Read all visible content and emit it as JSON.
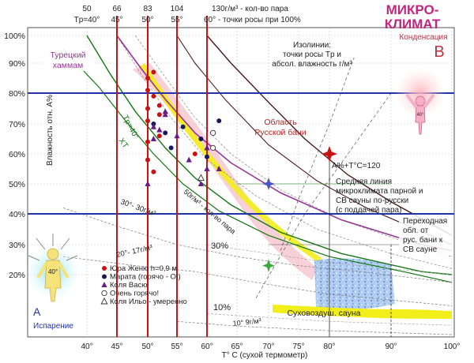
{
  "chart_data": {
    "type": "scatter",
    "title": "МИКРО-\nКЛИМАТ",
    "title_line1": "МИКРО-",
    "title_line2": "КЛИМАТ",
    "xlabel": "T° C (сухой термометр)",
    "ylabel": "Влажность отн. А%",
    "xlim": [
      35,
      100
    ],
    "ylim": [
      12,
      100
    ],
    "x_ticks": [
      "40°",
      "45°",
      "50°",
      "55°",
      "60°",
      "65°",
      "70°",
      "75°",
      "80°",
      "90°",
      "100°"
    ],
    "y_ticks": [
      "20%",
      "30%",
      "40%",
      "50%",
      "60%",
      "70%",
      "80%",
      "90%",
      "100%"
    ],
    "top_axis": {
      "row1": [
        "50",
        "66",
        "83",
        "104",
        "130г/м³ - кол-во пара"
      ],
      "row2_first": "Tр=40°",
      "row2": [
        "45°",
        "50°",
        "55°",
        "60° - точки росы при 100%"
      ]
    },
    "colors": {
      "red": "#cc1111",
      "blue": "#2233aa",
      "green": "#117711",
      "purple": "#993399",
      "yellow": "#f2ee1a",
      "pink": "#f7c8d0",
      "dark": "#4a1a1a"
    },
    "labels": {
      "turkish": "Турецкий\nхаммам",
      "isolines": "Изолинии:\nточки росы Tр и\nабсол. влажность г/м³",
      "condensation": "Конденсация",
      "letter_b": "В",
      "letter_a": "А",
      "evaporation": "Испарение",
      "figure_temp_b": "40°",
      "figure_temp_a": "40°",
      "russian_bath": "Область\nРусской бани",
      "formula": "А%+T°C=120",
      "middle_line": "Средняя линия\nмикроклимата парной и\nСВ сауны по-русски\n(с поддачей пара)",
      "transition": "Переходная\nобл. от\nрус. бани к\nСВ сауне",
      "dry_sauna": "Суховоздуш. сауна",
      "tr40": "Tр=40°",
      "xt": "XT",
      "g30": "30°- 30г/м³",
      "g50": "50г/м³ - кол-во пара",
      "g20": "20°- 17г/м³",
      "g10": "10° 9г/м³",
      "pct30": "30%",
      "pct10": "10%"
    },
    "legend": [
      {
        "marker": "circle-red",
        "text": "Юра Женю h=0,9 м"
      },
      {
        "marker": "circle-navy",
        "text": "Марата (горячо - О!)"
      },
      {
        "marker": "triangle-purple",
        "text": "Коля Васю"
      },
      {
        "marker": "circle-open",
        "text": "Очень горячо!"
      },
      {
        "marker": "triangle-open",
        "text": "Коля Ильо - умеренно"
      }
    ],
    "series": [
      {
        "name": "Юра Женю h=0,9 м",
        "marker": "circle-red",
        "points": [
          [
            50,
            85
          ],
          [
            50,
            81
          ],
          [
            50,
            75
          ],
          [
            50,
            71
          ],
          [
            50,
            64
          ],
          [
            50,
            58
          ],
          [
            51,
            87
          ],
          [
            51,
            79
          ],
          [
            52,
            76
          ],
          [
            52,
            73
          ],
          [
            52,
            66
          ],
          [
            51,
            54
          ],
          [
            58,
            60
          ]
        ]
      },
      {
        "name": "Марата (горячо - О!)",
        "marker": "circle-navy",
        "points": [
          [
            51,
            70
          ],
          [
            53,
            67
          ],
          [
            56,
            69
          ],
          [
            59,
            65
          ],
          [
            60,
            59
          ],
          [
            62,
            71
          ],
          [
            54,
            62
          ]
        ]
      },
      {
        "name": "Коля Васю",
        "marker": "triangle-purple",
        "points": [
          [
            50,
            50
          ],
          [
            51,
            69
          ],
          [
            51,
            65
          ],
          [
            52,
            68
          ],
          [
            53,
            73
          ],
          [
            53,
            74
          ],
          [
            55,
            66
          ],
          [
            60,
            62
          ],
          [
            57,
            58
          ],
          [
            60,
            55
          ],
          [
            59,
            50
          ],
          [
            62,
            55
          ]
        ]
      },
      {
        "name": "Очень горячо!",
        "marker": "circle-open",
        "points": [
          [
            61,
            67
          ],
          [
            61,
            62
          ]
        ]
      },
      {
        "name": "Коля Ильо - умеренно",
        "marker": "triangle-open",
        "points": [
          [
            59,
            52
          ]
        ]
      }
    ],
    "special_points": [
      {
        "x": 80,
        "y": 60,
        "marker": "star-red"
      },
      {
        "x": 70,
        "y": 50,
        "marker": "star-blue"
      },
      {
        "x": 70,
        "y": 23,
        "marker": "star-green"
      }
    ]
  }
}
